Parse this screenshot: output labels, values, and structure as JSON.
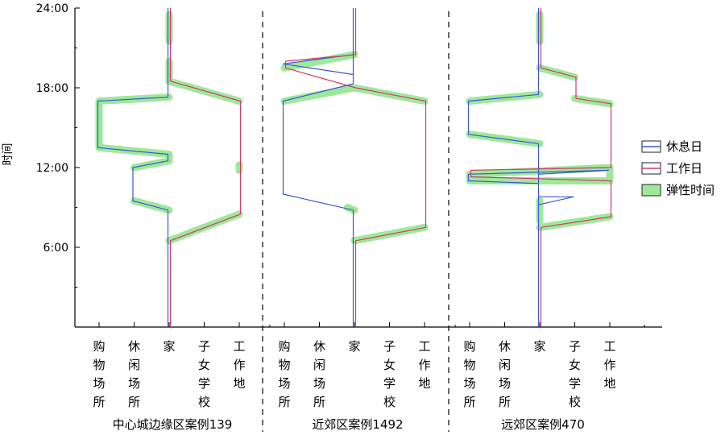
{
  "chart_data": {
    "type": "line",
    "title": "",
    "ylabel": "时间",
    "ylim": [
      0,
      24
    ],
    "ytick_labels": [
      "6:00",
      "12:00",
      "18:00",
      "24:00"
    ],
    "yticks": [
      6,
      12,
      18,
      24
    ],
    "x_categories": [
      "购物场所",
      "休闲场所",
      "家",
      "子女学校",
      "工作地"
    ],
    "legend_position": "right",
    "legend": [
      {
        "key": "rest",
        "label": "休息日",
        "color": "#3a57d6"
      },
      {
        "key": "work",
        "label": "工作日",
        "color": "#d13a63"
      },
      {
        "key": "flex",
        "label": "弹性时间",
        "color": "#9ee89a"
      }
    ],
    "panels": [
      {
        "title": "中心城边缘区案例139",
        "rest_path": [
          [
            2,
            0
          ],
          [
            2,
            8.8
          ],
          [
            1,
            9.5
          ],
          [
            1,
            12
          ],
          [
            2,
            12.5
          ],
          [
            2,
            13
          ],
          [
            0,
            13.5
          ],
          [
            0,
            17
          ],
          [
            2,
            17.3
          ],
          [
            2,
            24
          ]
        ],
        "work_path": [
          [
            2,
            0
          ],
          [
            2,
            6.5
          ],
          [
            4,
            8.5
          ],
          [
            4,
            17
          ],
          [
            2,
            18.5
          ],
          [
            2,
            24
          ]
        ],
        "flex_paths": [
          [
            [
              2,
              8.8
            ],
            [
              1,
              9.5
            ]
          ],
          [
            [
              1,
              12
            ],
            [
              2,
              12.5
            ],
            [
              2,
              13
            ],
            [
              0,
              13.5
            ],
            [
              0,
              17
            ],
            [
              2,
              17.3
            ]
          ],
          [
            [
              2,
              6.5
            ],
            [
              4,
              8.5
            ]
          ],
          [
            [
              4,
              11.8
            ],
            [
              4,
              12.2
            ]
          ],
          [
            [
              4,
              17
            ],
            [
              2,
              18.5
            ],
            [
              2,
              20
            ]
          ],
          [
            [
              2,
              21.5
            ],
            [
              2,
              23.5
            ]
          ]
        ]
      },
      {
        "title": "近郊区案例1492",
        "rest_path": [
          [
            2,
            0
          ],
          [
            2,
            8.8
          ],
          [
            0,
            10
          ],
          [
            0,
            17
          ],
          [
            2,
            18.3
          ],
          [
            2,
            20.5
          ],
          [
            0,
            19.8
          ],
          [
            2,
            19
          ],
          [
            2,
            24
          ]
        ],
        "work_path": [
          [
            2,
            0
          ],
          [
            2,
            6.5
          ],
          [
            4,
            7.5
          ],
          [
            4,
            17
          ],
          [
            2,
            18
          ],
          [
            0,
            19.5
          ],
          [
            0,
            20
          ],
          [
            2,
            20.5
          ],
          [
            2,
            24
          ]
        ],
        "flex_paths": [
          [
            [
              2,
              6.5
            ],
            [
              4,
              7.5
            ]
          ],
          [
            [
              0,
              17
            ],
            [
              2,
              18
            ],
            [
              4,
              17
            ]
          ],
          [
            [
              0,
              19.5
            ],
            [
              2,
              20.5
            ]
          ],
          [
            [
              1.8,
              9
            ],
            [
              2,
              8.8
            ]
          ]
        ]
      },
      {
        "title": "远郊区案例470",
        "rest_path": [
          [
            2,
            0
          ],
          [
            2,
            11.5
          ],
          [
            4,
            11.8
          ],
          [
            0,
            11.5
          ],
          [
            0,
            11
          ],
          [
            2,
            10.8
          ],
          [
            2,
            9.8
          ],
          [
            3,
            9.8
          ],
          [
            2,
            9.2
          ],
          [
            2,
            13.8
          ],
          [
            0,
            14.5
          ],
          [
            0,
            17
          ],
          [
            2,
            17.5
          ],
          [
            2,
            24
          ]
        ],
        "work_path": [
          [
            2,
            0
          ],
          [
            2,
            7.5
          ],
          [
            4,
            8.3
          ],
          [
            4,
            11
          ],
          [
            0,
            11.3
          ],
          [
            0,
            11.8
          ],
          [
            4,
            12
          ],
          [
            4,
            16.8
          ],
          [
            3,
            17.2
          ],
          [
            3,
            18.8
          ],
          [
            2,
            19.5
          ],
          [
            2,
            24
          ]
        ],
        "flex_paths": [
          [
            [
              2,
              7.5
            ],
            [
              4,
              8.3
            ]
          ],
          [
            [
              2,
              8
            ],
            [
              2,
              9.5
            ]
          ],
          [
            [
              0,
              11
            ],
            [
              4,
              11
            ],
            [
              4,
              12
            ],
            [
              0,
              11.5
            ],
            [
              0,
              11
            ]
          ],
          [
            [
              3,
              17.2
            ],
            [
              4,
              16.8
            ]
          ],
          [
            [
              2,
              19.5
            ],
            [
              3,
              18.8
            ]
          ],
          [
            [
              2,
              21.5
            ],
            [
              2,
              23.5
            ]
          ],
          [
            [
              0,
              17
            ],
            [
              2,
              17.5
            ]
          ],
          [
            [
              0,
              14.5
            ],
            [
              2,
              13.8
            ]
          ]
        ]
      }
    ]
  }
}
